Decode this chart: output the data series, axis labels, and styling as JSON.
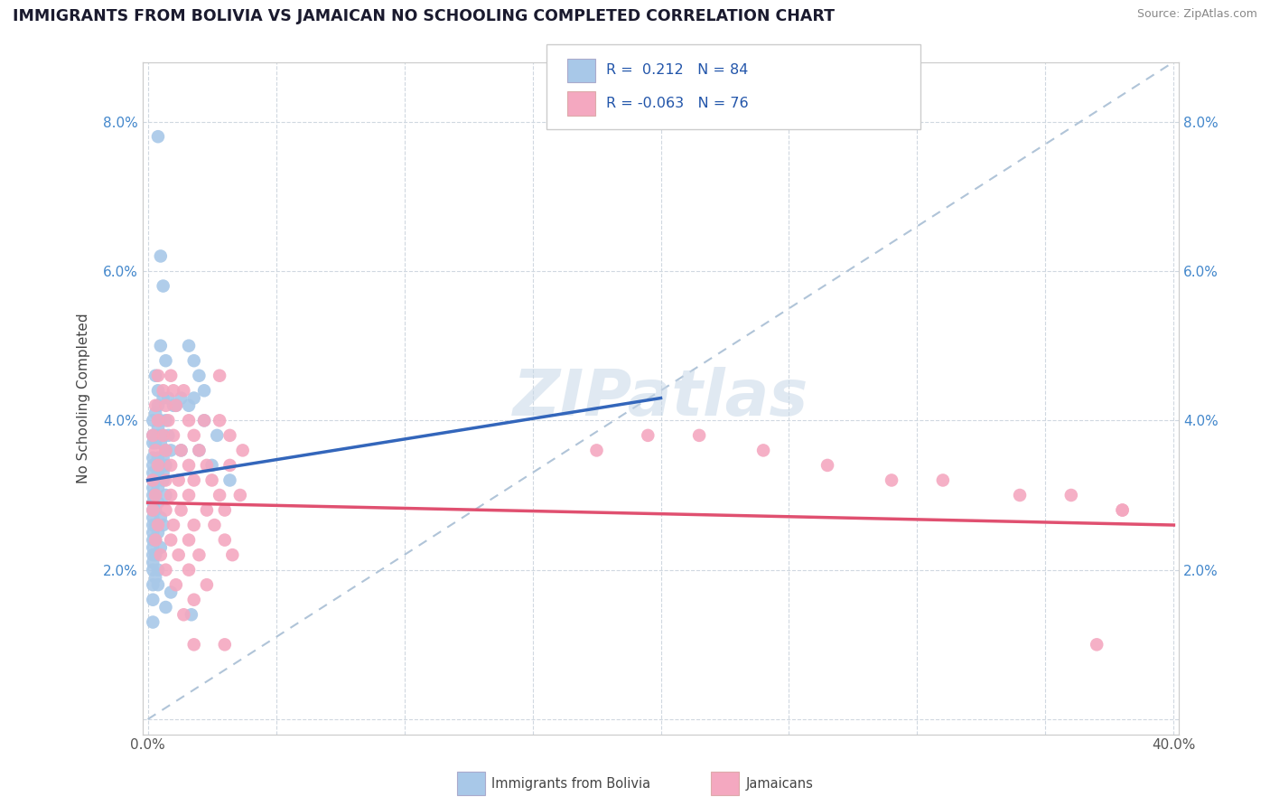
{
  "title": "IMMIGRANTS FROM BOLIVIA VS JAMAICAN NO SCHOOLING COMPLETED CORRELATION CHART",
  "source": "Source: ZipAtlas.com",
  "ylabel": "No Schooling Completed",
  "xlim": [
    -0.002,
    0.402
  ],
  "ylim": [
    -0.002,
    0.088
  ],
  "xtick_vals": [
    0.0,
    0.05,
    0.1,
    0.15,
    0.2,
    0.25,
    0.3,
    0.35,
    0.4
  ],
  "ytick_vals": [
    0.0,
    0.02,
    0.04,
    0.06,
    0.08
  ],
  "bolivia_color": "#a8c8e8",
  "jamaica_color": "#f4a8c0",
  "bolivia_line_color": "#3366bb",
  "jamaica_line_color": "#e05070",
  "dash_color": "#b0c4d8",
  "bolivia_R": 0.212,
  "bolivia_N": 84,
  "jamaica_R": -0.063,
  "jamaica_N": 76,
  "bolivia_points": [
    [
      0.004,
      0.078
    ],
    [
      0.005,
      0.062
    ],
    [
      0.006,
      0.058
    ],
    [
      0.005,
      0.05
    ],
    [
      0.007,
      0.048
    ],
    [
      0.003,
      0.046
    ],
    [
      0.004,
      0.044
    ],
    [
      0.006,
      0.043
    ],
    [
      0.008,
      0.043
    ],
    [
      0.004,
      0.042
    ],
    [
      0.01,
      0.042
    ],
    [
      0.003,
      0.041
    ],
    [
      0.002,
      0.04
    ],
    [
      0.005,
      0.04
    ],
    [
      0.007,
      0.04
    ],
    [
      0.004,
      0.039
    ],
    [
      0.002,
      0.038
    ],
    [
      0.004,
      0.038
    ],
    [
      0.006,
      0.038
    ],
    [
      0.008,
      0.038
    ],
    [
      0.002,
      0.037
    ],
    [
      0.003,
      0.037
    ],
    [
      0.005,
      0.037
    ],
    [
      0.007,
      0.036
    ],
    [
      0.009,
      0.036
    ],
    [
      0.002,
      0.035
    ],
    [
      0.004,
      0.035
    ],
    [
      0.006,
      0.035
    ],
    [
      0.002,
      0.034
    ],
    [
      0.004,
      0.034
    ],
    [
      0.007,
      0.034
    ],
    [
      0.002,
      0.033
    ],
    [
      0.004,
      0.033
    ],
    [
      0.006,
      0.033
    ],
    [
      0.002,
      0.032
    ],
    [
      0.004,
      0.032
    ],
    [
      0.006,
      0.032
    ],
    [
      0.002,
      0.031
    ],
    [
      0.004,
      0.031
    ],
    [
      0.002,
      0.03
    ],
    [
      0.003,
      0.03
    ],
    [
      0.007,
      0.03
    ],
    [
      0.002,
      0.029
    ],
    [
      0.004,
      0.029
    ],
    [
      0.002,
      0.028
    ],
    [
      0.003,
      0.028
    ],
    [
      0.002,
      0.027
    ],
    [
      0.005,
      0.027
    ],
    [
      0.002,
      0.026
    ],
    [
      0.003,
      0.026
    ],
    [
      0.006,
      0.026
    ],
    [
      0.002,
      0.025
    ],
    [
      0.004,
      0.025
    ],
    [
      0.002,
      0.024
    ],
    [
      0.003,
      0.024
    ],
    [
      0.002,
      0.023
    ],
    [
      0.005,
      0.023
    ],
    [
      0.002,
      0.022
    ],
    [
      0.003,
      0.022
    ],
    [
      0.002,
      0.021
    ],
    [
      0.002,
      0.02
    ],
    [
      0.004,
      0.02
    ],
    [
      0.003,
      0.019
    ],
    [
      0.002,
      0.018
    ],
    [
      0.004,
      0.018
    ],
    [
      0.009,
      0.017
    ],
    [
      0.002,
      0.016
    ],
    [
      0.007,
      0.015
    ],
    [
      0.002,
      0.013
    ],
    [
      0.016,
      0.05
    ],
    [
      0.018,
      0.048
    ],
    [
      0.02,
      0.046
    ],
    [
      0.022,
      0.044
    ],
    [
      0.013,
      0.043
    ],
    [
      0.018,
      0.043
    ],
    [
      0.011,
      0.042
    ],
    [
      0.016,
      0.042
    ],
    [
      0.022,
      0.04
    ],
    [
      0.027,
      0.038
    ],
    [
      0.013,
      0.036
    ],
    [
      0.02,
      0.036
    ],
    [
      0.025,
      0.034
    ],
    [
      0.032,
      0.032
    ],
    [
      0.017,
      0.014
    ]
  ],
  "jamaica_points": [
    [
      0.004,
      0.046
    ],
    [
      0.006,
      0.044
    ],
    [
      0.01,
      0.044
    ],
    [
      0.014,
      0.044
    ],
    [
      0.003,
      0.042
    ],
    [
      0.007,
      0.042
    ],
    [
      0.011,
      0.042
    ],
    [
      0.004,
      0.04
    ],
    [
      0.008,
      0.04
    ],
    [
      0.016,
      0.04
    ],
    [
      0.022,
      0.04
    ],
    [
      0.028,
      0.04
    ],
    [
      0.002,
      0.038
    ],
    [
      0.006,
      0.038
    ],
    [
      0.01,
      0.038
    ],
    [
      0.018,
      0.038
    ],
    [
      0.032,
      0.038
    ],
    [
      0.003,
      0.036
    ],
    [
      0.007,
      0.036
    ],
    [
      0.013,
      0.036
    ],
    [
      0.02,
      0.036
    ],
    [
      0.037,
      0.036
    ],
    [
      0.004,
      0.034
    ],
    [
      0.009,
      0.034
    ],
    [
      0.016,
      0.034
    ],
    [
      0.023,
      0.034
    ],
    [
      0.032,
      0.034
    ],
    [
      0.002,
      0.032
    ],
    [
      0.007,
      0.032
    ],
    [
      0.012,
      0.032
    ],
    [
      0.018,
      0.032
    ],
    [
      0.025,
      0.032
    ],
    [
      0.003,
      0.03
    ],
    [
      0.009,
      0.03
    ],
    [
      0.016,
      0.03
    ],
    [
      0.028,
      0.03
    ],
    [
      0.036,
      0.03
    ],
    [
      0.002,
      0.028
    ],
    [
      0.007,
      0.028
    ],
    [
      0.013,
      0.028
    ],
    [
      0.023,
      0.028
    ],
    [
      0.03,
      0.028
    ],
    [
      0.004,
      0.026
    ],
    [
      0.01,
      0.026
    ],
    [
      0.018,
      0.026
    ],
    [
      0.026,
      0.026
    ],
    [
      0.003,
      0.024
    ],
    [
      0.009,
      0.024
    ],
    [
      0.016,
      0.024
    ],
    [
      0.03,
      0.024
    ],
    [
      0.005,
      0.022
    ],
    [
      0.012,
      0.022
    ],
    [
      0.02,
      0.022
    ],
    [
      0.033,
      0.022
    ],
    [
      0.007,
      0.02
    ],
    [
      0.016,
      0.02
    ],
    [
      0.011,
      0.018
    ],
    [
      0.023,
      0.018
    ],
    [
      0.018,
      0.016
    ],
    [
      0.014,
      0.014
    ],
    [
      0.009,
      0.046
    ],
    [
      0.028,
      0.046
    ],
    [
      0.018,
      0.01
    ],
    [
      0.03,
      0.01
    ],
    [
      0.175,
      0.036
    ],
    [
      0.195,
      0.038
    ],
    [
      0.215,
      0.038
    ],
    [
      0.24,
      0.036
    ],
    [
      0.265,
      0.034
    ],
    [
      0.29,
      0.032
    ],
    [
      0.31,
      0.032
    ],
    [
      0.34,
      0.03
    ],
    [
      0.36,
      0.03
    ],
    [
      0.38,
      0.028
    ],
    [
      0.37,
      0.01
    ],
    [
      0.38,
      0.028
    ]
  ]
}
